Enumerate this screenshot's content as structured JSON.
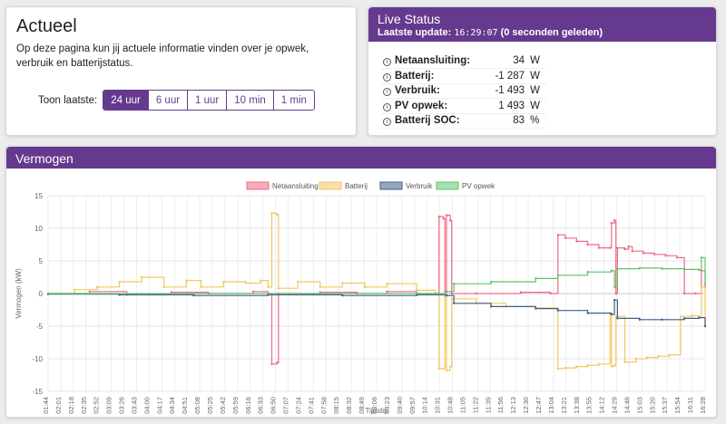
{
  "actueel": {
    "title": "Actueel",
    "description": "Op deze pagina kun jij actuele informatie vinden over je opwek, verbruik en batterijstatus.",
    "range_label": "Toon laatste:",
    "range_buttons": [
      "24 uur",
      "6 uur",
      "1 uur",
      "10 min",
      "1 min"
    ],
    "active_range": "24 uur"
  },
  "live": {
    "title": "Live Status",
    "update_label": "Laatste update:",
    "update_time": "16:29:07",
    "update_age": "(0 seconden geleden)",
    "rows": [
      {
        "label": "Netaansluiting:",
        "value": "34",
        "unit": "W"
      },
      {
        "label": "Batterij:",
        "value": "-1 287",
        "unit": "W"
      },
      {
        "label": "Verbruik:",
        "value": "-1 493",
        "unit": "W"
      },
      {
        "label": "PV opwek:",
        "value": "1 493",
        "unit": "W"
      },
      {
        "label": "Batterij SOC:",
        "value": "83",
        "unit": "%"
      }
    ]
  },
  "vermogen": {
    "title": "Vermogen"
  },
  "chart_data": {
    "type": "line",
    "xlabel": "Tijdstip",
    "ylabel": "Vermogen (kW)",
    "ylim": [
      -15,
      15
    ],
    "yticks": [
      15,
      10,
      5,
      0,
      -5,
      -10,
      -15
    ],
    "grid": true,
    "legend_position": "top",
    "x_tick_labels": [
      "01:44",
      "02:01",
      "02:18",
      "02:35",
      "02:52",
      "03:09",
      "03:26",
      "03:43",
      "04:00",
      "04:17",
      "04:34",
      "04:51",
      "05:08",
      "05:25",
      "05:42",
      "05:59",
      "06:16",
      "06:33",
      "06:50",
      "07:07",
      "07:24",
      "07:41",
      "07:58",
      "08:15",
      "08:32",
      "08:49",
      "09:06",
      "09:23",
      "09:40",
      "09:57",
      "10:14",
      "10:31",
      "10:48",
      "11:05",
      "11:22",
      "11:39",
      "11:56",
      "12:13",
      "12:30",
      "12:47",
      "13:04",
      "13:21",
      "13:38",
      "13:55",
      "14:12",
      "14:29",
      "14:46",
      "15:03",
      "15:20",
      "15:37",
      "15:54",
      "16:11",
      "16:28"
    ],
    "x_range_minutes": [
      104,
      988
    ],
    "colors": {
      "Netaansluiting": "#ef6b83",
      "Batterij": "#f0c95f",
      "Verbruik": "#3f5f86",
      "PV opwek": "#5dc46d"
    },
    "series": [
      {
        "name": "Netaansluiting",
        "points": [
          [
            104,
            0
          ],
          [
            160,
            0.3
          ],
          [
            210,
            -0.2
          ],
          [
            270,
            0.2
          ],
          [
            320,
            0
          ],
          [
            380,
            0.3
          ],
          [
            400,
            0
          ],
          [
            405,
            -10.8
          ],
          [
            412,
            -10.6
          ],
          [
            414,
            0
          ],
          [
            470,
            0.2
          ],
          [
            520,
            0
          ],
          [
            560,
            0.3
          ],
          [
            600,
            0
          ],
          [
            625,
            0
          ],
          [
            630,
            11.8
          ],
          [
            636,
            11.5
          ],
          [
            638,
            0.3
          ],
          [
            640,
            12
          ],
          [
            645,
            11.2
          ],
          [
            647,
            0
          ],
          [
            680,
            0
          ],
          [
            740,
            0.2
          ],
          [
            780,
            0
          ],
          [
            790,
            9
          ],
          [
            800,
            8.5
          ],
          [
            815,
            8
          ],
          [
            830,
            7.5
          ],
          [
            845,
            7
          ],
          [
            860,
            7
          ],
          [
            862,
            10.8
          ],
          [
            866,
            11.2
          ],
          [
            868,
            0
          ],
          [
            870,
            7
          ],
          [
            880,
            6.8
          ],
          [
            885,
            7.2
          ],
          [
            890,
            6.5
          ],
          [
            905,
            6.2
          ],
          [
            920,
            6
          ],
          [
            935,
            5.8
          ],
          [
            950,
            5.5
          ],
          [
            960,
            0
          ],
          [
            975,
            0
          ],
          [
            983,
            3.5
          ],
          [
            988,
            1
          ]
        ]
      },
      {
        "name": "Batterij",
        "points": [
          [
            104,
            0
          ],
          [
            140,
            0.6
          ],
          [
            170,
            1
          ],
          [
            200,
            1.8
          ],
          [
            230,
            2.5
          ],
          [
            260,
            1
          ],
          [
            290,
            2
          ],
          [
            310,
            1
          ],
          [
            340,
            1.8
          ],
          [
            370,
            1.6
          ],
          [
            390,
            2
          ],
          [
            400,
            1
          ],
          [
            405,
            12.3
          ],
          [
            412,
            12.1
          ],
          [
            414,
            0.8
          ],
          [
            440,
            1.8
          ],
          [
            470,
            1
          ],
          [
            500,
            1.6
          ],
          [
            530,
            1
          ],
          [
            560,
            1.5
          ],
          [
            600,
            0.5
          ],
          [
            625,
            0
          ],
          [
            630,
            -11.5
          ],
          [
            636,
            -11.5
          ],
          [
            638,
            -0.5
          ],
          [
            640,
            -11.8
          ],
          [
            645,
            -11.2
          ],
          [
            647,
            -0.8
          ],
          [
            680,
            -1.5
          ],
          [
            720,
            -2
          ],
          [
            760,
            -2.2
          ],
          [
            790,
            -11.5
          ],
          [
            800,
            -11.4
          ],
          [
            815,
            -11.2
          ],
          [
            830,
            -11
          ],
          [
            845,
            -10.8
          ],
          [
            860,
            -3
          ],
          [
            862,
            -11.2
          ],
          [
            866,
            -11
          ],
          [
            868,
            -3.5
          ],
          [
            880,
            -10.5
          ],
          [
            895,
            -10
          ],
          [
            910,
            -9.8
          ],
          [
            925,
            -9.6
          ],
          [
            940,
            -9.4
          ],
          [
            955,
            -3.5
          ],
          [
            970,
            -3.4
          ],
          [
            980,
            -3.6
          ],
          [
            983,
            1
          ],
          [
            988,
            -5
          ]
        ]
      },
      {
        "name": "Verbruik",
        "points": [
          [
            104,
            -0.1
          ],
          [
            200,
            -0.2
          ],
          [
            300,
            -0.3
          ],
          [
            400,
            -0.2
          ],
          [
            500,
            -0.3
          ],
          [
            600,
            -0.2
          ],
          [
            640,
            -0.3
          ],
          [
            650,
            -1.5
          ],
          [
            700,
            -2
          ],
          [
            760,
            -2.3
          ],
          [
            790,
            -2.6
          ],
          [
            830,
            -3
          ],
          [
            862,
            -3.2
          ],
          [
            866,
            -1
          ],
          [
            870,
            -3.8
          ],
          [
            900,
            -4
          ],
          [
            930,
            -4
          ],
          [
            960,
            -3.8
          ],
          [
            980,
            -3.7
          ],
          [
            988,
            -5
          ]
        ]
      },
      {
        "name": "PV opwek",
        "points": [
          [
            104,
            0
          ],
          [
            600,
            0
          ],
          [
            625,
            0
          ],
          [
            630,
            0
          ],
          [
            640,
            0.3
          ],
          [
            650,
            1.5
          ],
          [
            700,
            1.8
          ],
          [
            760,
            2.3
          ],
          [
            790,
            2.8
          ],
          [
            830,
            3.3
          ],
          [
            862,
            3.5
          ],
          [
            866,
            1
          ],
          [
            870,
            3.8
          ],
          [
            900,
            3.9
          ],
          [
            930,
            3.8
          ],
          [
            960,
            3.7
          ],
          [
            980,
            3.6
          ],
          [
            983,
            5.5
          ],
          [
            988,
            1.5
          ]
        ]
      }
    ]
  }
}
